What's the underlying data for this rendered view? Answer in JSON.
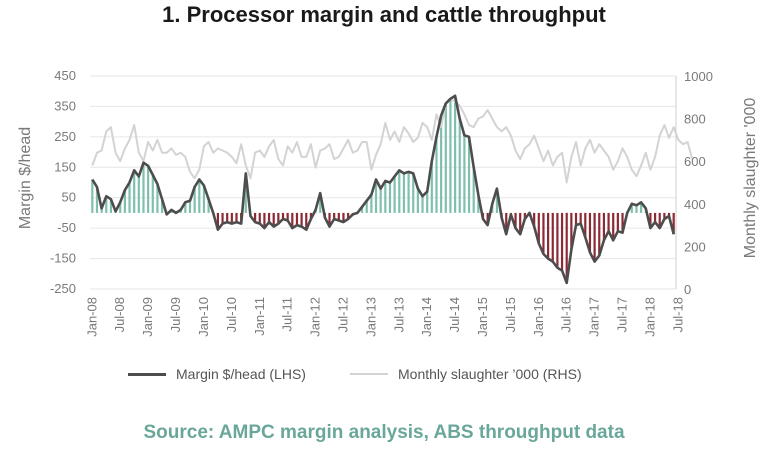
{
  "chart_data": {
    "type": "line",
    "title": "1. Processor margin and cattle throughput",
    "ylabel_left": "Margin $/head",
    "ylabel_right": "Monthly slaughter '000",
    "ylim_left": [
      -250,
      450
    ],
    "ylim_right": [
      0,
      1000
    ],
    "yticks_left": [
      450,
      350,
      250,
      150,
      50,
      -50,
      -150,
      -250
    ],
    "yticks_right": [
      1000,
      800,
      600,
      400,
      200,
      0
    ],
    "x_tick_labels": [
      "Jan-08",
      "Jul-08",
      "Jan-09",
      "Jul-09",
      "Jan-10",
      "Jul-10",
      "Jan-11",
      "Jul-11",
      "Jan-12",
      "Jul-12",
      "Jan-13",
      "Jul-13",
      "Jan-14",
      "Jul-14",
      "Jan-15",
      "Jul-15",
      "Jan-16",
      "Jul-16",
      "Jan-17",
      "Jul-17",
      "Jan-18",
      "Jul-18"
    ],
    "grid": true,
    "legend_position": "bottom",
    "colors": {
      "margin": "#4d4d4d",
      "slaughter": "#d3d3d3",
      "positive_fill": "#7fbfae",
      "negative_fill": "#8b2a35"
    },
    "series": [
      {
        "name": "Margin $/head (LHS)",
        "axis": "left",
        "values": [
          110,
          85,
          15,
          55,
          45,
          5,
          35,
          75,
          100,
          140,
          120,
          165,
          155,
          125,
          95,
          45,
          -5,
          10,
          0,
          10,
          35,
          40,
          85,
          110,
          90,
          45,
          0,
          -55,
          -35,
          -30,
          -35,
          -30,
          -35,
          130,
          -10,
          -30,
          -35,
          -50,
          -30,
          -45,
          -35,
          -20,
          -25,
          -50,
          -40,
          -45,
          -55,
          -20,
          10,
          65,
          -15,
          -45,
          -20,
          -25,
          -30,
          -20,
          -5,
          0,
          20,
          40,
          60,
          110,
          80,
          105,
          100,
          120,
          140,
          130,
          135,
          130,
          80,
          55,
          70,
          170,
          250,
          320,
          360,
          375,
          385,
          310,
          255,
          250,
          150,
          60,
          -20,
          -40,
          30,
          80,
          -15,
          -70,
          -5,
          -50,
          -70,
          -20,
          0,
          -45,
          -100,
          -135,
          -150,
          -160,
          -180,
          -190,
          -230,
          -120,
          -40,
          -35,
          -80,
          -130,
          -160,
          -140,
          -90,
          -60,
          -90,
          -60,
          -65,
          0,
          30,
          25,
          35,
          15,
          -50,
          -30,
          -50,
          -20,
          -10,
          -70
        ],
        "end_label": "Jul-18"
      },
      {
        "name": "Monthly slaughter '000 (RHS)",
        "axis": "right",
        "values": [
          580,
          640,
          650,
          740,
          760,
          640,
          600,
          660,
          700,
          770,
          640,
          600,
          690,
          650,
          700,
          640,
          640,
          660,
          630,
          640,
          620,
          550,
          520,
          560,
          670,
          690,
          640,
          660,
          650,
          640,
          620,
          590,
          680,
          580,
          520,
          640,
          650,
          620,
          670,
          700,
          610,
          580,
          670,
          640,
          690,
          620,
          620,
          680,
          570,
          650,
          660,
          680,
          610,
          620,
          660,
          700,
          640,
          650,
          690,
          690,
          560,
          630,
          680,
          780,
          700,
          740,
          690,
          760,
          730,
          690,
          710,
          780,
          760,
          700,
          820,
          760,
          870,
          890,
          880,
          860,
          820,
          770,
          760,
          800,
          810,
          840,
          800,
          760,
          740,
          760,
          720,
          650,
          610,
          660,
          680,
          720,
          660,
          600,
          650,
          580,
          620,
          640,
          500,
          620,
          690,
          580,
          660,
          700,
          640,
          680,
          650,
          620,
          560,
          600,
          660,
          620,
          560,
          530,
          580,
          640,
          560,
          620,
          720,
          770,
          710,
          760,
          700,
          680,
          690,
          610
        ]
      }
    ]
  },
  "legend": {
    "margin_label": "Margin $/head (LHS)",
    "slaughter_label": "Monthly slaughter ’000 (RHS)"
  },
  "source": "Source: AMPC margin analysis, ABS throughput data"
}
